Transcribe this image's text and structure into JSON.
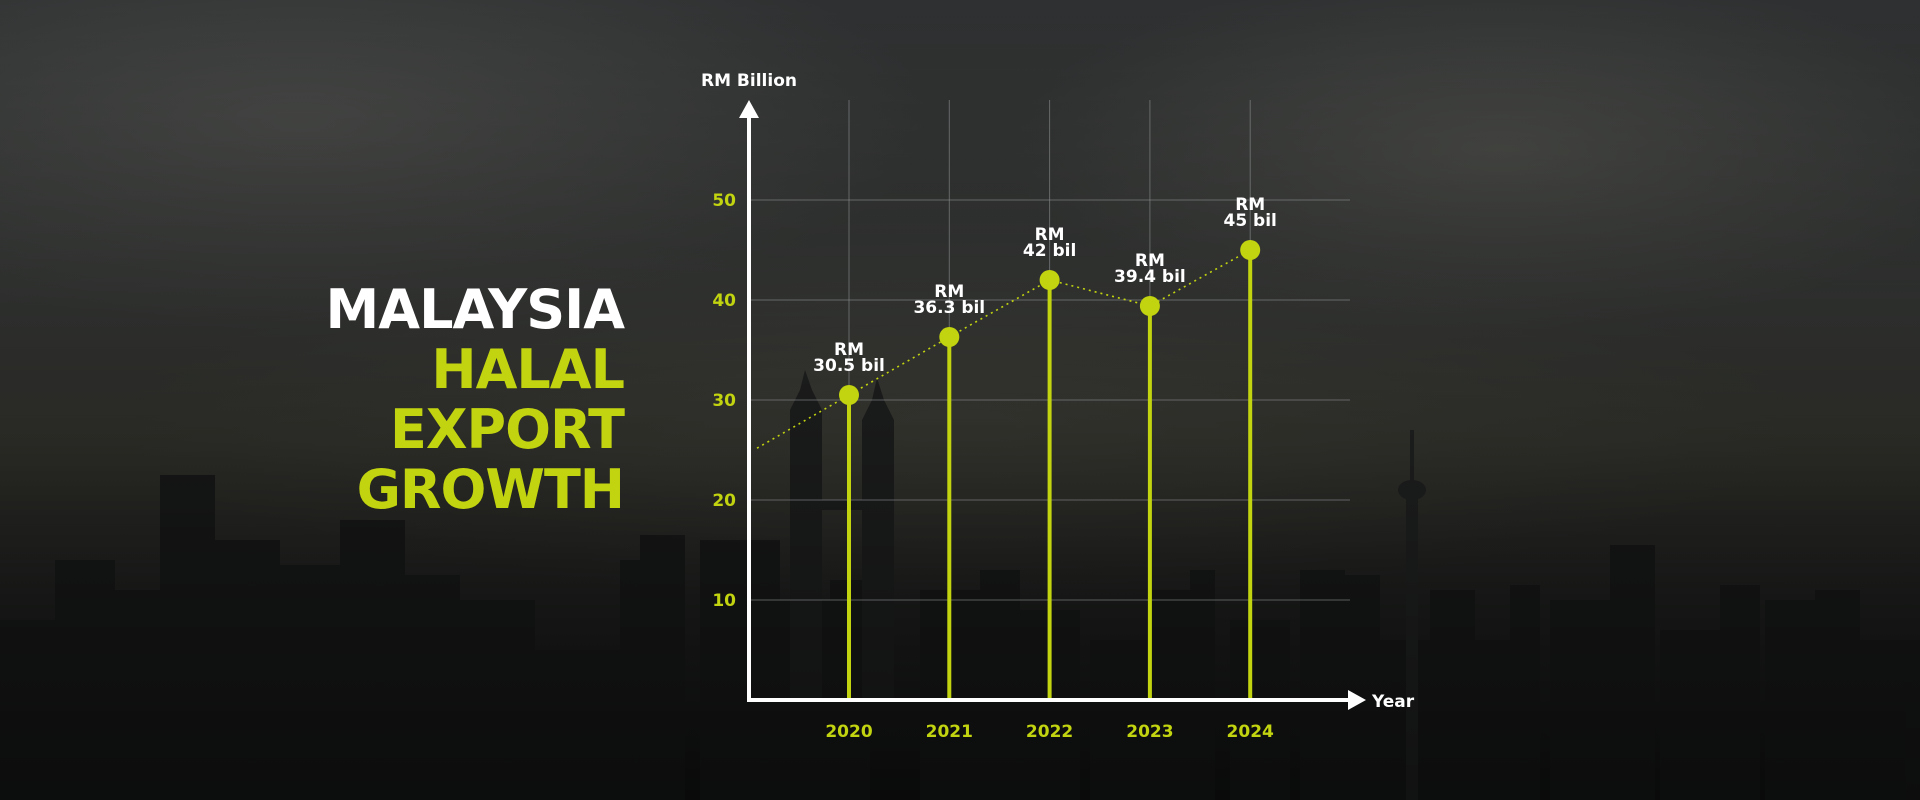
{
  "colors": {
    "accent": "#c2d40f",
    "text": "#ffffff",
    "grid": "#8a8d8f",
    "trend": "#c2d40f"
  },
  "headline": {
    "line1": "MALAYSIA",
    "line2": "HALAL",
    "line3": "EXPORT",
    "line4": "GROWTH"
  },
  "chart_data": {
    "type": "bar",
    "style": "lollipop",
    "categories": [
      "2020",
      "2021",
      "2022",
      "2023",
      "2024"
    ],
    "values": [
      30.5,
      36.3,
      42,
      39.4,
      45
    ],
    "data_labels": [
      {
        "top": "RM",
        "bottom": "30.5 bil"
      },
      {
        "top": "RM",
        "bottom": "36.3 bil"
      },
      {
        "top": "RM",
        "bottom": "42 bil"
      },
      {
        "top": "RM",
        "bottom": "39.4 bil"
      },
      {
        "top": "RM",
        "bottom": "45 bil"
      }
    ],
    "ylabel": "RM Billion",
    "xlabel": "Year",
    "yticks": [
      "10",
      "20",
      "30",
      "40",
      "50"
    ],
    "ytick_values": [
      10,
      20,
      30,
      40,
      50
    ],
    "ylim": [
      0,
      60
    ],
    "grid": true,
    "trend_line": "dotted"
  }
}
